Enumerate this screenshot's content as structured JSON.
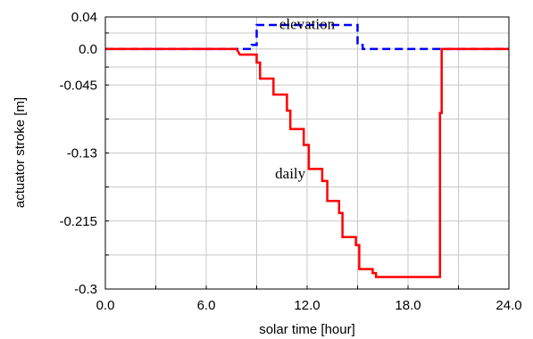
{
  "chart_data": {
    "type": "line",
    "xlabel": "solar time [hour]",
    "ylabel": "actuator stroke [m]",
    "xlim": [
      0,
      24
    ],
    "ylim": [
      -0.3,
      0.04
    ],
    "xticks": [
      0,
      6,
      12,
      18,
      24
    ],
    "xtick_labels": [
      "0.0",
      "6.0",
      "12.0",
      "18.0",
      "24.0"
    ],
    "yticks": [
      0.04,
      0.0,
      -0.045,
      -0.13,
      -0.215,
      -0.3
    ],
    "ytick_labels": [
      "0.04",
      "0.0",
      "-0.045",
      "-0.13",
      "-0.215",
      "-0.3"
    ],
    "grid": true,
    "series": [
      {
        "name": "elevation",
        "color": "#0000ff",
        "style": "dashed",
        "x": [
          0,
          8.7,
          8.7,
          9.0,
          9.0,
          15.0,
          15.0,
          15.3,
          15.3,
          24
        ],
        "y": [
          0,
          0,
          0.005,
          0.005,
          0.03,
          0.03,
          0.005,
          0.005,
          0,
          0
        ]
      },
      {
        "name": "daily",
        "color": "#ff0000",
        "style": "solid",
        "x": [
          0,
          7.8,
          8.0,
          9.0,
          9.0,
          9.2,
          9.2,
          10.0,
          10.0,
          10.8,
          10.8,
          11.0,
          11.0,
          11.8,
          11.8,
          12.1,
          12.1,
          12.9,
          12.9,
          13.2,
          13.2,
          13.9,
          13.9,
          14.1,
          14.1,
          14.9,
          14.9,
          15.1,
          15.1,
          15.9,
          15.9,
          16.1,
          16.1,
          19.9,
          19.9,
          20.0,
          20.0,
          24
        ],
        "y": [
          0,
          0,
          -0.007,
          -0.007,
          -0.017,
          -0.017,
          -0.037,
          -0.037,
          -0.057,
          -0.057,
          -0.077,
          -0.077,
          -0.1,
          -0.1,
          -0.12,
          -0.12,
          -0.15,
          -0.15,
          -0.165,
          -0.165,
          -0.19,
          -0.19,
          -0.205,
          -0.205,
          -0.235,
          -0.235,
          -0.245,
          -0.245,
          -0.275,
          -0.275,
          -0.28,
          -0.28,
          -0.285,
          -0.285,
          -0.08,
          -0.08,
          0,
          0
        ]
      }
    ],
    "annotations": [
      {
        "text": "elevation",
        "x": 12.0,
        "y": 0.025
      },
      {
        "text": "daily",
        "x": 11.0,
        "y": -0.162
      }
    ]
  }
}
